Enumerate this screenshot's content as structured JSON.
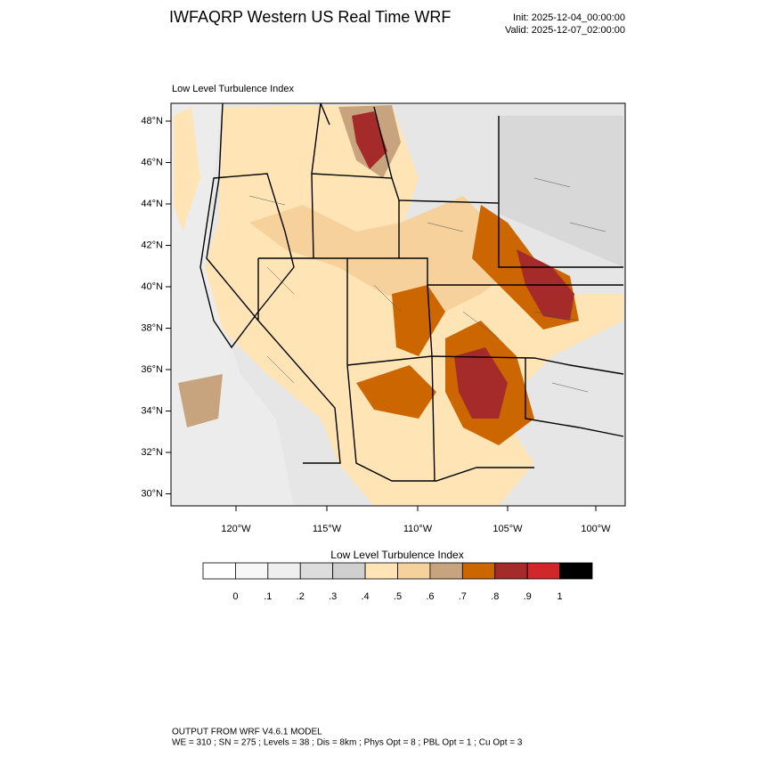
{
  "header": {
    "title": "IWFAQRP Western US Real Time WRF",
    "init": "Init: 2025-12-04_00:00:00",
    "valid": "Valid: 2025-12-07_02:00:00"
  },
  "map": {
    "label": "Low Level Turbulence Index",
    "lat_labels": [
      "48°N",
      "46°N",
      "44°N",
      "42°N",
      "40°N",
      "38°N",
      "36°N",
      "34°N",
      "32°N",
      "30°N"
    ],
    "lon_labels": [
      "120°W",
      "115°W",
      "110°W",
      "105°W",
      "100°W"
    ]
  },
  "colorbar": {
    "title": "Low Level Turbulence Index",
    "labels": [
      "0",
      ".1",
      ".2",
      ".3",
      ".4",
      ".5",
      ".6",
      ".7",
      ".8",
      ".9",
      "1"
    ],
    "colors": [
      "#ffffff",
      "#f7f7f7",
      "#efefef",
      "#dcdcdc",
      "#cfcfcf",
      "#ffe4b5",
      "#f7d19c",
      "#c8a47e",
      "#cc6600",
      "#a52a2a",
      "#d0282a",
      "#000000"
    ]
  },
  "footer": {
    "line1": "OUTPUT FROM WRF V4.6.1 MODEL",
    "line2": "WE = 310 ; SN = 275 ; Levels = 38 ; Dis = 8km ; Phys Opt = 8 ; PBL Opt = 1 ; Cu Opt = 3"
  }
}
